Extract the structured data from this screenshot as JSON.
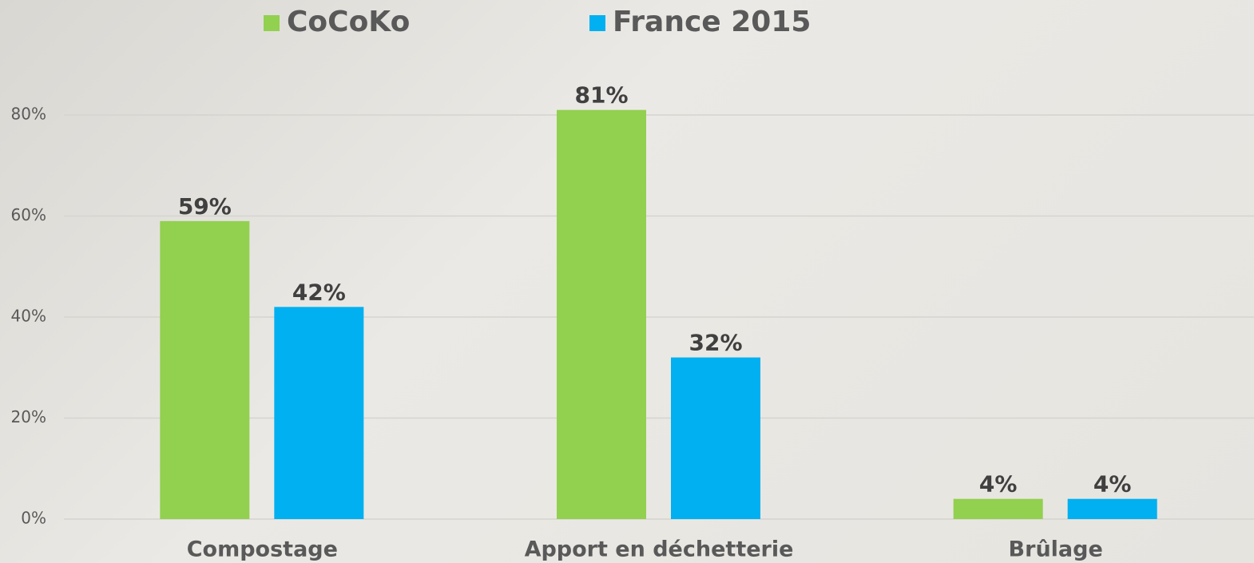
{
  "chart_data": {
    "type": "bar",
    "categories": [
      "Compostage",
      "Apport en déchetterie",
      "Brûlage"
    ],
    "series": [
      {
        "name": "CoCoKo",
        "color": "#92d050",
        "values": [
          59,
          81,
          4
        ],
        "value_labels": [
          "59%",
          "81%",
          "4%"
        ]
      },
      {
        "name": "France 2015",
        "color": "#00b0f0",
        "values": [
          42,
          32,
          4
        ],
        "value_labels": [
          "42%",
          "32%",
          "4%"
        ]
      }
    ],
    "ylim": [
      0,
      90
    ],
    "yticks": [
      {
        "value": 0,
        "label": "0%"
      },
      {
        "value": 20,
        "label": "20%"
      },
      {
        "value": 40,
        "label": "40%"
      },
      {
        "value": 60,
        "label": "60%"
      },
      {
        "value": 80,
        "label": "80%"
      }
    ],
    "grid": true,
    "legend": "top"
  }
}
